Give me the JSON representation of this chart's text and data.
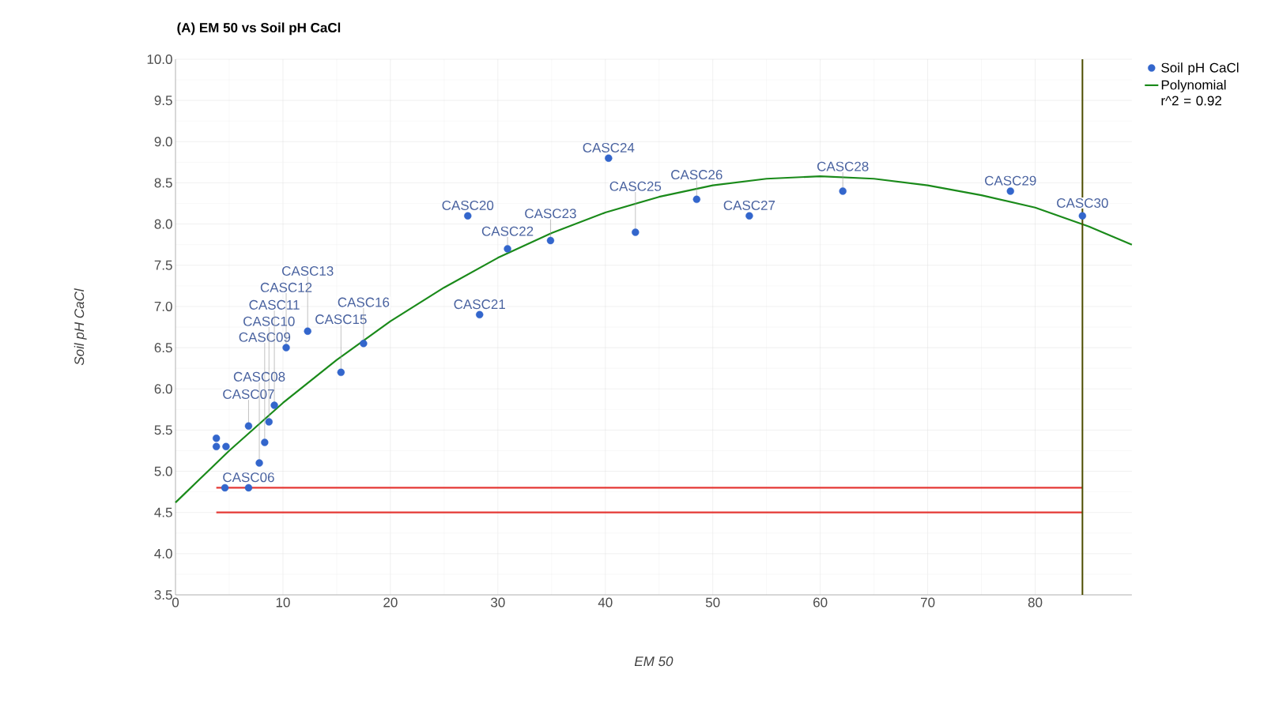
{
  "chart_data": {
    "type": "scatter",
    "title": "(A) EM 50 vs Soil pH CaCl",
    "xlabel": "EM 50",
    "ylabel": "Soil pH CaCl",
    "xlim": [
      0,
      89
    ],
    "xticks": [
      0,
      10,
      20,
      30,
      40,
      50,
      60,
      70,
      80
    ],
    "ylim": [
      3.5,
      10
    ],
    "yticks": [
      3.5,
      {
        "value": 4,
        "label": "4.0"
      },
      4.5,
      {
        "value": 5,
        "label": "5.0"
      },
      5.5,
      {
        "value": 6,
        "label": "6.0"
      },
      6.5,
      {
        "value": 7,
        "label": "7.0"
      },
      7.5,
      {
        "value": 8,
        "label": "8.0"
      },
      8.5,
      {
        "value": 9,
        "label": "9.0"
      },
      9.5,
      {
        "value": 10,
        "label": "10.0"
      }
    ],
    "grid": true,
    "legend": "top right",
    "marker": "circle",
    "series": [
      {
        "name": "Soil pH CaCl",
        "color": "#3366cc",
        "x": [
          3.8,
          3.8,
          4.6,
          4.7,
          6.8,
          6.8,
          7.8,
          8.3,
          8.7,
          9.2,
          10.3,
          12.3,
          15.4,
          17.5,
          27.2,
          28.3,
          30.9,
          34.9,
          40.3,
          42.8,
          48.5,
          53.4,
          62.1,
          77.7,
          84.4
        ],
        "values": [
          5.4,
          5.3,
          4.8,
          5.3,
          4.8,
          5.55,
          5.1,
          5.35,
          5.6,
          5.8,
          6.5,
          6.7,
          6.2,
          6.55,
          8.1,
          6.9,
          7.7,
          7.8,
          8.8,
          7.9,
          8.3,
          8.1,
          8.4,
          8.4,
          8.1
        ],
        "value_labels": [
          null,
          null,
          null,
          null,
          "CASC06",
          "CASC07",
          "CASC08",
          "CASC09",
          "CASC10",
          "CASC11",
          "CASC12",
          "CASC13",
          "CASC15",
          "CASC16",
          "CASC20",
          "CASC21",
          "CASC22",
          "CASC23",
          "CASC24",
          "CASC25",
          "CASC26",
          "CASC27",
          "CASC28",
          "CASC29",
          "CASC30"
        ]
      },
      {
        "name": "Polynomial r^2 = 0.92",
        "type": "line",
        "marker": "none",
        "color": "#1a8a1a",
        "x": [
          0,
          5,
          10,
          15,
          20,
          25,
          30,
          35,
          40,
          45,
          50,
          55,
          60,
          65,
          70,
          75,
          80,
          85,
          89
        ],
        "values": [
          4.62,
          5.25,
          5.83,
          6.35,
          6.82,
          7.23,
          7.59,
          7.89,
          8.14,
          8.33,
          8.47,
          8.55,
          8.58,
          8.55,
          8.47,
          8.35,
          8.2,
          7.97,
          7.75
        ]
      },
      {
        "type": "line",
        "marker": "none",
        "color": "#e53935",
        "x": [
          3.8,
          84.4
        ],
        "values": [
          4.8,
          4.8
        ]
      },
      {
        "type": "line",
        "marker": "none",
        "color": "#e53935",
        "x": [
          3.8,
          84.4
        ],
        "values": [
          4.5,
          4.5
        ]
      }
    ],
    "ref_lines": [
      {
        "axis": "x",
        "value": 84.4,
        "color": "#4d4d00"
      }
    ]
  }
}
